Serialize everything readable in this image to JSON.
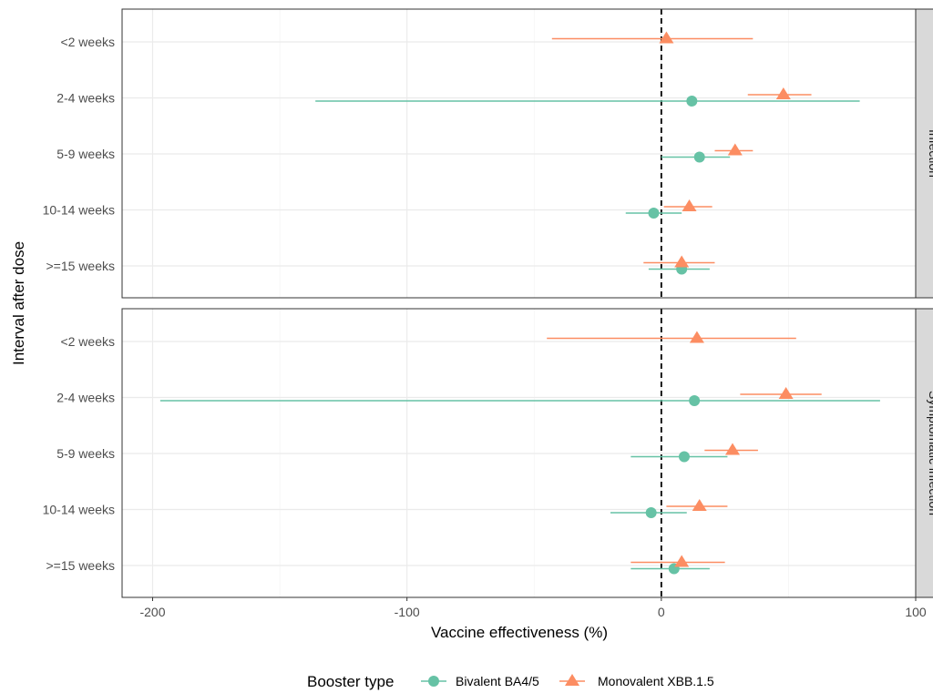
{
  "chart_data": {
    "type": "forest",
    "xlabel": "Vaccine effectiveness (%)",
    "ylabel": "Interval after dose",
    "xlim": [
      -212,
      100
    ],
    "x_ticks": [
      -200,
      -100,
      0,
      100
    ],
    "x_tick_labels": [
      "-200",
      "-100",
      "0",
      "100"
    ],
    "reference_line": 0,
    "grid": true,
    "categories": [
      "<2 weeks",
      "2-4 weeks",
      "5-9 weeks",
      "10-14 weeks",
      ">=15 weeks"
    ],
    "legend": {
      "title": "Booster type",
      "position": "bottom",
      "entries": [
        {
          "name": "Bivalent BA4/5",
          "color": "#66c2a5",
          "shape": "circle"
        },
        {
          "name": "Monovalent XBB.1.5",
          "color": "#fc8d62",
          "shape": "triangle"
        }
      ]
    },
    "panels": [
      {
        "strip": "Infection",
        "series": [
          {
            "name": "Bivalent BA4/5",
            "color": "#66c2a5",
            "points": [
              {
                "category": "2-4 weeks",
                "estimate": 12,
                "lower": -136,
                "upper": 78
              },
              {
                "category": "5-9 weeks",
                "estimate": 15,
                "lower": 0,
                "upper": 27
              },
              {
                "category": "10-14 weeks",
                "estimate": -3,
                "lower": -14,
                "upper": 8
              },
              {
                "category": ">=15 weeks",
                "estimate": 8,
                "lower": -5,
                "upper": 19
              }
            ]
          },
          {
            "name": "Monovalent XBB.1.5",
            "color": "#fc8d62",
            "points": [
              {
                "category": "<2 weeks",
                "estimate": 2,
                "lower": -43,
                "upper": 36
              },
              {
                "category": "2-4 weeks",
                "estimate": 48,
                "lower": 34,
                "upper": 59
              },
              {
                "category": "5-9 weeks",
                "estimate": 29,
                "lower": 21,
                "upper": 36
              },
              {
                "category": "10-14 weeks",
                "estimate": 11,
                "lower": 1,
                "upper": 20
              },
              {
                "category": ">=15 weeks",
                "estimate": 8,
                "lower": -7,
                "upper": 21
              }
            ]
          }
        ]
      },
      {
        "strip": "Symptomatic infection",
        "series": [
          {
            "name": "Bivalent BA4/5",
            "color": "#66c2a5",
            "points": [
              {
                "category": "2-4 weeks",
                "estimate": 13,
                "lower": -197,
                "upper": 86
              },
              {
                "category": "5-9 weeks",
                "estimate": 9,
                "lower": -12,
                "upper": 26
              },
              {
                "category": "10-14 weeks",
                "estimate": -4,
                "lower": -20,
                "upper": 10
              },
              {
                "category": ">=15 weeks",
                "estimate": 5,
                "lower": -12,
                "upper": 19
              }
            ]
          },
          {
            "name": "Monovalent XBB.1.5",
            "color": "#fc8d62",
            "points": [
              {
                "category": "<2 weeks",
                "estimate": 14,
                "lower": -45,
                "upper": 53
              },
              {
                "category": "2-4 weeks",
                "estimate": 49,
                "lower": 31,
                "upper": 63
              },
              {
                "category": "5-9 weeks",
                "estimate": 28,
                "lower": 17,
                "upper": 38
              },
              {
                "category": "10-14 weeks",
                "estimate": 15,
                "lower": 2,
                "upper": 26
              },
              {
                "category": ">=15 weeks",
                "estimate": 8,
                "lower": -12,
                "upper": 25
              }
            ]
          }
        ]
      }
    ]
  }
}
